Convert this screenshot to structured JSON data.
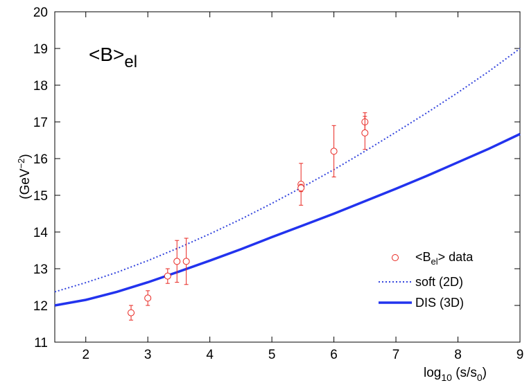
{
  "chart_data": {
    "type": "line",
    "title": {
      "main": "<B>",
      "sub": "el"
    },
    "xlabel": {
      "main": "log",
      "sub": "10",
      "rest": " (s/s",
      "sub2": "0",
      "end": ")"
    },
    "ylabel": {
      "main": "(GeV",
      "sup": "−2",
      "end": ")"
    },
    "xlim": [
      1.5,
      9
    ],
    "ylim": [
      11,
      20
    ],
    "xticks": [
      2,
      3,
      4,
      5,
      6,
      7,
      8,
      9
    ],
    "yticks": [
      11,
      12,
      13,
      14,
      15,
      16,
      17,
      18,
      19,
      20
    ],
    "series": [
      {
        "name": "soft (2D)",
        "style": "dotted",
        "color": "#3344dd",
        "x": [
          1.5,
          2,
          2.5,
          3,
          3.5,
          4,
          4.5,
          5,
          5.5,
          6,
          6.5,
          7,
          7.5,
          8,
          8.5,
          9
        ],
        "y": [
          12.37,
          12.62,
          12.9,
          13.22,
          13.57,
          13.95,
          14.35,
          14.78,
          15.23,
          15.7,
          16.2,
          16.72,
          17.25,
          17.8,
          18.38,
          19.0
        ]
      },
      {
        "name": "DIS (3D)",
        "style": "solid",
        "color": "#2233ee",
        "x": [
          1.5,
          2,
          2.5,
          3,
          3.5,
          4,
          4.5,
          5,
          5.5,
          6,
          6.5,
          7,
          7.5,
          8,
          8.5,
          9
        ],
        "y": [
          12.0,
          12.15,
          12.37,
          12.63,
          12.92,
          13.22,
          13.53,
          13.86,
          14.18,
          14.5,
          14.84,
          15.18,
          15.53,
          15.9,
          16.27,
          16.67
        ]
      }
    ],
    "data_points": {
      "name": "data",
      "legend_main": "<B",
      "legend_sub": "el",
      "legend_rest": "> data",
      "color": "#e8241e",
      "points": [
        {
          "x": 2.73,
          "y": 11.8,
          "err": 0.2
        },
        {
          "x": 3.0,
          "y": 12.2,
          "err": 0.2
        },
        {
          "x": 3.32,
          "y": 12.8,
          "err": 0.2
        },
        {
          "x": 3.47,
          "y": 13.2,
          "err": 0.57
        },
        {
          "x": 3.62,
          "y": 13.2,
          "err": 0.63
        },
        {
          "x": 5.47,
          "y": 15.3,
          "err": 0.57
        },
        {
          "x": 5.47,
          "y": 15.2,
          "err": 0.1
        },
        {
          "x": 6.0,
          "y": 16.2,
          "err": 0.7
        },
        {
          "x": 6.5,
          "y": 17.0,
          "err": 0.25
        },
        {
          "x": 6.5,
          "y": 16.7,
          "err": 0.45
        }
      ]
    },
    "legend_position": "bottom-right",
    "grid": false
  }
}
